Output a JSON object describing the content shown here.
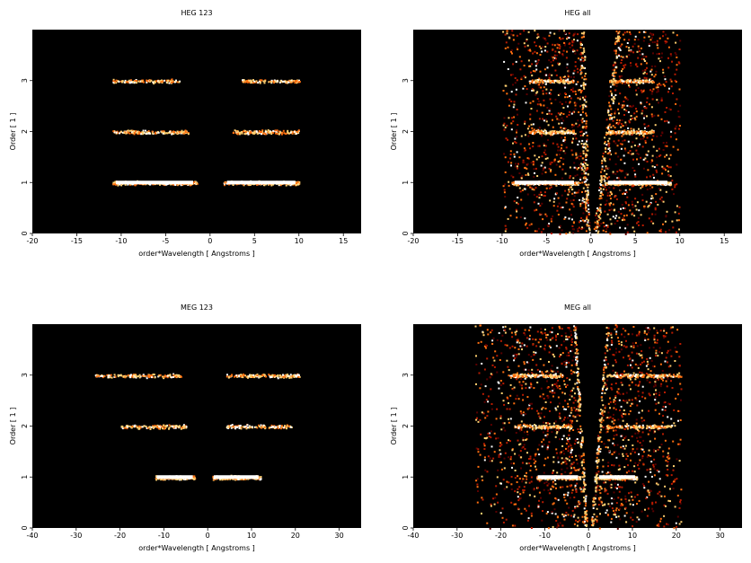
{
  "chart_data": [
    {
      "type": "heatmap",
      "title": "HEG 123",
      "xlabel": "order*Wavelength [ Angstroms ]",
      "ylabel": "Order [ 1 ]",
      "xlim": [
        -20,
        17
      ],
      "ylim": [
        0,
        4
      ],
      "xticks": [
        -20,
        -15,
        -10,
        -5,
        0,
        5,
        10,
        15
      ],
      "yticks": [
        0,
        1,
        2,
        3
      ],
      "colormap": [
        "#000000",
        "#5a0000",
        "#b81b00",
        "#ff6f10",
        "#ffd070",
        "#ffffff"
      ],
      "bands": [
        {
          "order": 1,
          "ranges": [
            [
              -11,
              -1.5
            ],
            [
              1.5,
              10
            ]
          ],
          "intensity": 1.0
        },
        {
          "order": 2,
          "ranges": [
            [
              -11,
              -2.5
            ],
            [
              2.5,
              10
            ]
          ],
          "intensity": 0.6
        },
        {
          "order": 3,
          "ranges": [
            [
              -11,
              -3.5
            ],
            [
              3.5,
              10
            ]
          ],
          "intensity": 0.45
        }
      ],
      "background": false
    },
    {
      "type": "heatmap",
      "title": "HEG all",
      "xlabel": "order*Wavelength [ Angstroms ]",
      "ylabel": "Order [ 1 ]",
      "xlim": [
        -20,
        17
      ],
      "ylim": [
        0,
        4
      ],
      "xticks": [
        -20,
        -15,
        -10,
        -5,
        0,
        5,
        10,
        15
      ],
      "yticks": [
        0,
        1,
        2,
        3
      ],
      "colormap": [
        "#000000",
        "#5a0000",
        "#b81b00",
        "#ff6f10",
        "#ffd070",
        "#ffffff"
      ],
      "bands": [
        {
          "order": 1,
          "ranges": [
            [
              -9,
              -1.5
            ],
            [
              1.5,
              9
            ]
          ],
          "intensity": 1.0
        },
        {
          "order": 2,
          "ranges": [
            [
              -7,
              -2
            ],
            [
              2,
              7
            ]
          ],
          "intensity": 0.55
        },
        {
          "order": 3,
          "ranges": [
            [
              -7,
              -2
            ],
            [
              2,
              7
            ]
          ],
          "intensity": 0.45
        }
      ],
      "background": true,
      "background_xlim": [
        -10,
        10
      ],
      "v_gap_at_order4": [
        -0.8,
        2.8
      ],
      "v_gap_at_order0": [
        -0.2,
        0.2
      ]
    },
    {
      "type": "heatmap",
      "title": "MEG 123",
      "xlabel": "order*Wavelength [ Angstroms ]",
      "ylabel": "Order [ 1 ]",
      "xlim": [
        -40,
        35
      ],
      "ylim": [
        0,
        4
      ],
      "xticks": [
        -40,
        -30,
        -20,
        -10,
        0,
        10,
        20,
        30
      ],
      "yticks": [
        0,
        1,
        2,
        3
      ],
      "colormap": [
        "#000000",
        "#5a0000",
        "#b81b00",
        "#ff6f10",
        "#ffd070",
        "#ffffff"
      ],
      "bands": [
        {
          "order": 1,
          "ranges": [
            [
              -12,
              -3
            ],
            [
              1,
              12
            ]
          ],
          "intensity": 1.0
        },
        {
          "order": 2,
          "ranges": [
            [
              -20,
              -5
            ],
            [
              4,
              19
            ]
          ],
          "intensity": 0.5
        },
        {
          "order": 3,
          "ranges": [
            [
              -26,
              -6
            ],
            [
              4,
              21
            ]
          ],
          "intensity": 0.6
        }
      ],
      "background": false
    },
    {
      "type": "heatmap",
      "title": "MEG all",
      "xlabel": "order*Wavelength [ Angstroms ]",
      "ylabel": "Order [ 1 ]",
      "xlim": [
        -40,
        35
      ],
      "ylim": [
        0,
        4
      ],
      "xticks": [
        -40,
        -30,
        -20,
        -10,
        0,
        10,
        20,
        30
      ],
      "yticks": [
        0,
        1,
        2,
        3
      ],
      "colormap": [
        "#000000",
        "#5a0000",
        "#b81b00",
        "#ff6f10",
        "#ffd070",
        "#ffffff"
      ],
      "bands": [
        {
          "order": 1,
          "ranges": [
            [
              -12,
              -2
            ],
            [
              2,
              11
            ]
          ],
          "intensity": 1.0
        },
        {
          "order": 2,
          "ranges": [
            [
              -17,
              -4
            ],
            [
              4,
              19
            ]
          ],
          "intensity": 0.5
        },
        {
          "order": 3,
          "ranges": [
            [
              -18,
              -6
            ],
            [
              4,
              21
            ]
          ],
          "intensity": 0.6
        }
      ],
      "background": true,
      "background_xlim": [
        -26,
        21
      ],
      "v_gap_at_order4": [
        -3,
        4
      ],
      "v_gap_at_order0": [
        -0.3,
        0.3
      ]
    }
  ]
}
